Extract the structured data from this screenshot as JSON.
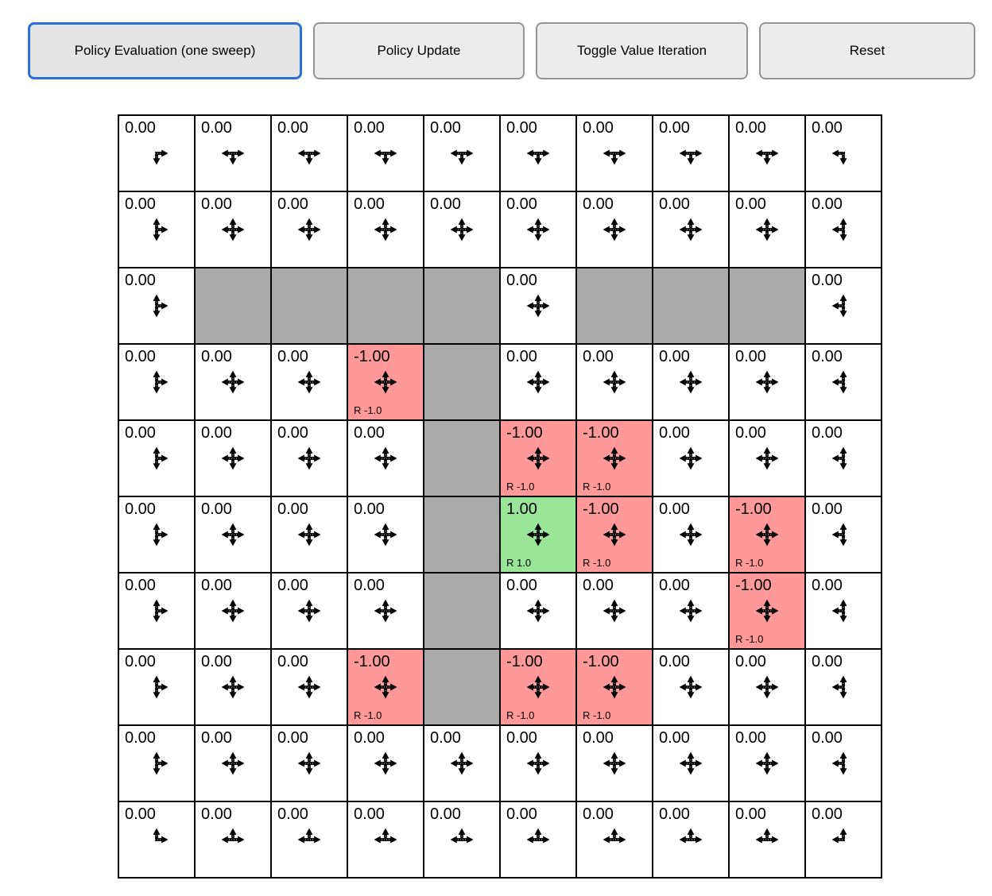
{
  "palette": {
    "accent": "#2b6fdd",
    "button_bg": "#ececec",
    "wall": "#aaaaaa",
    "negative_bg": "#ff9999",
    "positive_bg": "#99e699",
    "arrow_color": "#000000",
    "grid_line": "#000000"
  },
  "toolbar": {
    "buttons": [
      {
        "id": "policy-evaluation",
        "label": "Policy Evaluation (one sweep)",
        "active": true
      },
      {
        "id": "policy-update",
        "label": "Policy Update",
        "active": false
      },
      {
        "id": "toggle-value-iteration",
        "label": "Toggle Value Iteration",
        "active": false
      },
      {
        "id": "reset",
        "label": "Reset",
        "active": false
      }
    ]
  },
  "grid": {
    "rows": 10,
    "cols": 10,
    "arrow_key": "u=up, d=down, l=left, r=right",
    "cells": [
      [
        {
          "value": "0.00",
          "arrows": "dr"
        },
        {
          "value": "0.00",
          "arrows": "ldr"
        },
        {
          "value": "0.00",
          "arrows": "ldr"
        },
        {
          "value": "0.00",
          "arrows": "ldr"
        },
        {
          "value": "0.00",
          "arrows": "ldr"
        },
        {
          "value": "0.00",
          "arrows": "ldr"
        },
        {
          "value": "0.00",
          "arrows": "ldr"
        },
        {
          "value": "0.00",
          "arrows": "ldr"
        },
        {
          "value": "0.00",
          "arrows": "ldr"
        },
        {
          "value": "0.00",
          "arrows": "ld"
        }
      ],
      [
        {
          "value": "0.00",
          "arrows": "udr"
        },
        {
          "value": "0.00",
          "arrows": "udlr"
        },
        {
          "value": "0.00",
          "arrows": "udlr"
        },
        {
          "value": "0.00",
          "arrows": "udlr"
        },
        {
          "value": "0.00",
          "arrows": "udlr"
        },
        {
          "value": "0.00",
          "arrows": "udlr"
        },
        {
          "value": "0.00",
          "arrows": "udlr"
        },
        {
          "value": "0.00",
          "arrows": "udlr"
        },
        {
          "value": "0.00",
          "arrows": "udlr"
        },
        {
          "value": "0.00",
          "arrows": "udl"
        }
      ],
      [
        {
          "value": "0.00",
          "arrows": "udr"
        },
        {
          "type": "wall"
        },
        {
          "type": "wall"
        },
        {
          "type": "wall"
        },
        {
          "type": "wall"
        },
        {
          "value": "0.00",
          "arrows": "udlr"
        },
        {
          "type": "wall"
        },
        {
          "type": "wall"
        },
        {
          "type": "wall"
        },
        {
          "value": "0.00",
          "arrows": "udl"
        }
      ],
      [
        {
          "value": "0.00",
          "arrows": "udr"
        },
        {
          "value": "0.00",
          "arrows": "udlr"
        },
        {
          "value": "0.00",
          "arrows": "udlr"
        },
        {
          "value": "-1.00",
          "type": "neg",
          "reward": "R -1.0",
          "arrows": "udlr"
        },
        {
          "type": "wall"
        },
        {
          "value": "0.00",
          "arrows": "udlr"
        },
        {
          "value": "0.00",
          "arrows": "udlr"
        },
        {
          "value": "0.00",
          "arrows": "udlr"
        },
        {
          "value": "0.00",
          "arrows": "udlr"
        },
        {
          "value": "0.00",
          "arrows": "udl"
        }
      ],
      [
        {
          "value": "0.00",
          "arrows": "udr"
        },
        {
          "value": "0.00",
          "arrows": "udlr"
        },
        {
          "value": "0.00",
          "arrows": "udlr"
        },
        {
          "value": "0.00",
          "arrows": "udlr"
        },
        {
          "type": "wall"
        },
        {
          "value": "-1.00",
          "type": "neg",
          "reward": "R -1.0",
          "arrows": "udlr"
        },
        {
          "value": "-1.00",
          "type": "neg",
          "reward": "R -1.0",
          "arrows": "udlr"
        },
        {
          "value": "0.00",
          "arrows": "udlr"
        },
        {
          "value": "0.00",
          "arrows": "udlr"
        },
        {
          "value": "0.00",
          "arrows": "udl"
        }
      ],
      [
        {
          "value": "0.00",
          "arrows": "udr"
        },
        {
          "value": "0.00",
          "arrows": "udlr"
        },
        {
          "value": "0.00",
          "arrows": "udlr"
        },
        {
          "value": "0.00",
          "arrows": "udlr"
        },
        {
          "type": "wall"
        },
        {
          "value": "1.00",
          "type": "pos",
          "reward": "R 1.0",
          "arrows": "udlr"
        },
        {
          "value": "-1.00",
          "type": "neg",
          "reward": "R -1.0",
          "arrows": "udlr"
        },
        {
          "value": "0.00",
          "arrows": "udlr"
        },
        {
          "value": "-1.00",
          "type": "neg",
          "reward": "R -1.0",
          "arrows": "udlr"
        },
        {
          "value": "0.00",
          "arrows": "udl"
        }
      ],
      [
        {
          "value": "0.00",
          "arrows": "udr"
        },
        {
          "value": "0.00",
          "arrows": "udlr"
        },
        {
          "value": "0.00",
          "arrows": "udlr"
        },
        {
          "value": "0.00",
          "arrows": "udlr"
        },
        {
          "type": "wall"
        },
        {
          "value": "0.00",
          "arrows": "udlr"
        },
        {
          "value": "0.00",
          "arrows": "udlr"
        },
        {
          "value": "0.00",
          "arrows": "udlr"
        },
        {
          "value": "-1.00",
          "type": "neg",
          "reward": "R -1.0",
          "arrows": "udlr"
        },
        {
          "value": "0.00",
          "arrows": "udl"
        }
      ],
      [
        {
          "value": "0.00",
          "arrows": "udr"
        },
        {
          "value": "0.00",
          "arrows": "udlr"
        },
        {
          "value": "0.00",
          "arrows": "udlr"
        },
        {
          "value": "-1.00",
          "type": "neg",
          "reward": "R -1.0",
          "arrows": "udlr"
        },
        {
          "type": "wall"
        },
        {
          "value": "-1.00",
          "type": "neg",
          "reward": "R -1.0",
          "arrows": "udlr"
        },
        {
          "value": "-1.00",
          "type": "neg",
          "reward": "R -1.0",
          "arrows": "udlr"
        },
        {
          "value": "0.00",
          "arrows": "udlr"
        },
        {
          "value": "0.00",
          "arrows": "udlr"
        },
        {
          "value": "0.00",
          "arrows": "udl"
        }
      ],
      [
        {
          "value": "0.00",
          "arrows": "udr"
        },
        {
          "value": "0.00",
          "arrows": "udlr"
        },
        {
          "value": "0.00",
          "arrows": "udlr"
        },
        {
          "value": "0.00",
          "arrows": "udlr"
        },
        {
          "value": "0.00",
          "arrows": "udlr"
        },
        {
          "value": "0.00",
          "arrows": "udlr"
        },
        {
          "value": "0.00",
          "arrows": "udlr"
        },
        {
          "value": "0.00",
          "arrows": "udlr"
        },
        {
          "value": "0.00",
          "arrows": "udlr"
        },
        {
          "value": "0.00",
          "arrows": "udl"
        }
      ],
      [
        {
          "value": "0.00",
          "arrows": "ur"
        },
        {
          "value": "0.00",
          "arrows": "ulr"
        },
        {
          "value": "0.00",
          "arrows": "ulr"
        },
        {
          "value": "0.00",
          "arrows": "ulr"
        },
        {
          "value": "0.00",
          "arrows": "ulr"
        },
        {
          "value": "0.00",
          "arrows": "ulr"
        },
        {
          "value": "0.00",
          "arrows": "ulr"
        },
        {
          "value": "0.00",
          "arrows": "ulr"
        },
        {
          "value": "0.00",
          "arrows": "ulr"
        },
        {
          "value": "0.00",
          "arrows": "ul"
        }
      ]
    ]
  }
}
